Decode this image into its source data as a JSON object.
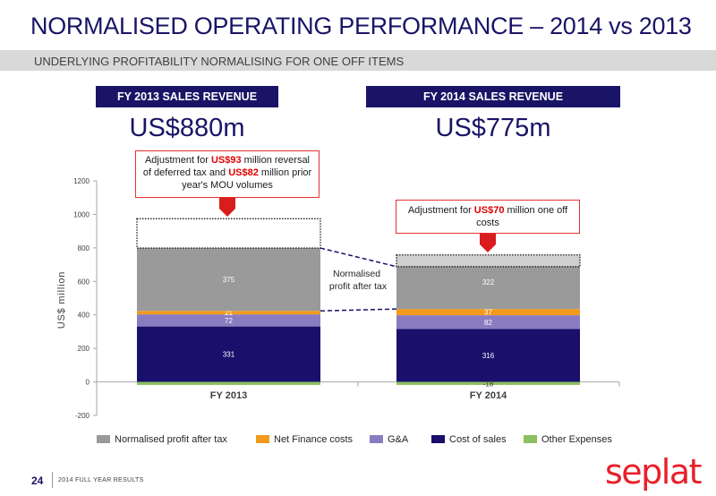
{
  "header": {
    "title": "NORMALISED OPERATING PERFORMANCE – 2014 vs 2013",
    "subtitle": "UNDERLYING PROFITABILITY NORMALISING FOR ONE OFF ITEMS"
  },
  "revenue": [
    {
      "label": "FY 2013 SALES REVENUE",
      "value": "US$880m"
    },
    {
      "label": "FY 2014 SALES REVENUE",
      "value": "US$775m"
    }
  ],
  "callouts": {
    "fy2013": {
      "pre": "Adjustment for ",
      "amt1": "US$93",
      "mid": " million reversal of deferred tax and ",
      "amt2": "US$82",
      "post": " million prior year's MOU volumes"
    },
    "fy2014": {
      "pre": "Adjustment for ",
      "amt1": "US$70",
      "post": " million one off costs"
    }
  },
  "chart_data": {
    "type": "bar",
    "stacked": true,
    "categories": [
      "FY 2013",
      "FY 2014"
    ],
    "ylabel": "US$ million",
    "ylim": [
      -200,
      1200
    ],
    "yticks": [
      -200,
      0,
      200,
      400,
      600,
      800,
      1000,
      1200
    ],
    "series": [
      {
        "name": "Cost of sales",
        "values": [
          331,
          316
        ],
        "labels": [
          "331",
          "316"
        ],
        "color": "#1a0f6b"
      },
      {
        "name": "G&A",
        "values": [
          72,
          82
        ],
        "labels": [
          "72",
          "82"
        ],
        "color": "#8a7cc0"
      },
      {
        "name": "Net Finance costs",
        "values": [
          21,
          37
        ],
        "labels": [
          "21",
          "37"
        ],
        "color": "#f29a1c"
      },
      {
        "name": "Normalised profit after tax",
        "values": [
          375,
          322
        ],
        "labels": [
          "375",
          "322"
        ],
        "color": "#9a9a9a"
      },
      {
        "name": "Other Expenses",
        "values": [
          -18,
          -18
        ],
        "labels": [
          "",
          "-18"
        ],
        "color": "#8dc060"
      }
    ],
    "adjustments": [
      {
        "category": "FY 2013",
        "from": 799,
        "to": 974
      },
      {
        "category": "FY 2014",
        "from": 688,
        "to": 758
      }
    ],
    "annotation": "Normalised profit after tax",
    "legend_order": [
      "Normalised profit after tax",
      "Net Finance costs",
      "G&A",
      "Cost of sales",
      "Other Expenses"
    ],
    "legend_position": "bottom"
  },
  "footer": {
    "page": "24",
    "text": "2014 FULL YEAR RESULTS",
    "logo": "seplat"
  }
}
